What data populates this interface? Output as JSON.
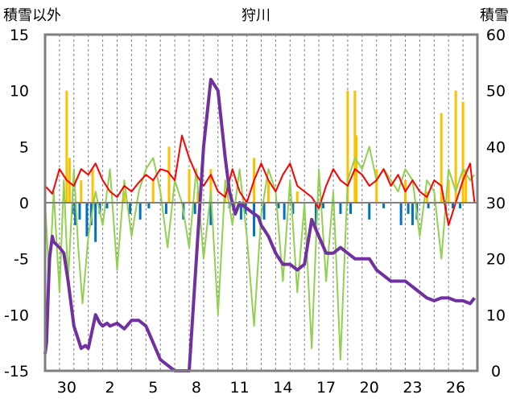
{
  "chart_data": {
    "type": "line",
    "title": "狩川",
    "left_axis_label": "積雪以外",
    "right_axis_label": "積雪",
    "left_ylim": [
      -15,
      15
    ],
    "left_yticks": [
      "15",
      "10",
      "5",
      "0",
      "-5",
      "-10",
      "-15"
    ],
    "right_ylim": [
      0,
      60
    ],
    "right_yticks": [
      "60",
      "50",
      "40",
      "30",
      "20",
      "10",
      "0"
    ],
    "x_range_days": [
      0,
      30
    ],
    "x_ticks": [
      {
        "label": "30",
        "day": 1.5
      },
      {
        "label": "2",
        "day": 4.5
      },
      {
        "label": "5",
        "day": 7.5
      },
      {
        "label": "8",
        "day": 10.5
      },
      {
        "label": "11",
        "day": 13.5
      },
      {
        "label": "14",
        "day": 16.5
      },
      {
        "label": "17",
        "day": 19.5
      },
      {
        "label": "20",
        "day": 22.5
      },
      {
        "label": "23",
        "day": 25.5
      },
      {
        "label": "26",
        "day": 28.5
      }
    ],
    "grid": "vertical dashed lines each day",
    "colors": {
      "temperature": "#ff0000",
      "wind": "#92d050",
      "precipitation": "#ffc000",
      "negative_bar": "#0070c0",
      "snow_depth": "#7030a0",
      "zero_line": "#808080",
      "frame": "#808080"
    },
    "series": [
      {
        "key": "snow",
        "axis": "right",
        "x": [
          0,
          0.1,
          0.3,
          0.5,
          0.6,
          1.0,
          1.3,
          1.6,
          2.0,
          2.5,
          2.8,
          3.0,
          3.5,
          3.8,
          4.0,
          4.3,
          4.5,
          5.0,
          5.5,
          6.0,
          6.5,
          7.0,
          7.5,
          8.0,
          9.0,
          9.5,
          10.0,
          11.0,
          11.5,
          12.0,
          12.5,
          12.8,
          13.0,
          13.2,
          13.5,
          14.0,
          14.5,
          14.8,
          15.0,
          15.5,
          16.0,
          16.5,
          17.0,
          17.5,
          18.0,
          18.5,
          19.0,
          19.5,
          20.0,
          20.5,
          21.0,
          21.5,
          22.0,
          22.5,
          23.0,
          23.5,
          24.0,
          25.0,
          25.5,
          26.0,
          26.5,
          27.0,
          27.5,
          28.0,
          28.5,
          29.0,
          29.5,
          29.8
        ],
        "y": [
          3,
          5,
          20,
          24,
          23,
          22,
          21,
          16,
          8,
          4,
          4.5,
          4,
          10,
          8.5,
          8,
          8.5,
          8,
          8.5,
          7.5,
          9,
          9,
          8,
          5,
          2,
          0,
          0,
          0,
          40,
          52,
          50,
          38,
          32,
          30,
          28,
          30,
          29,
          28,
          27.5,
          26,
          24,
          21,
          19,
          19,
          18,
          19,
          27,
          24,
          21,
          21,
          22,
          21,
          20,
          20,
          20,
          18,
          17,
          16,
          16,
          15,
          14,
          13,
          12.5,
          13,
          13,
          12.5,
          12.5,
          12,
          13
        ]
      },
      {
        "key": "temperature",
        "axis": "left",
        "x": [
          0,
          0.5,
          1.0,
          1.5,
          2.0,
          2.5,
          3.0,
          3.5,
          4.0,
          4.5,
          5.0,
          5.5,
          6.0,
          6.5,
          7.0,
          7.5,
          8.0,
          8.5,
          9.0,
          9.5,
          10.0,
          10.5,
          11.0,
          11.5,
          12.0,
          12.5,
          13.0,
          13.5,
          14.0,
          14.5,
          15.0,
          15.5,
          16.0,
          16.5,
          17.0,
          17.5,
          18.0,
          18.5,
          19.0,
          19.5,
          20.0,
          20.5,
          21.0,
          21.5,
          22.0,
          22.5,
          23.0,
          23.5,
          24.0,
          24.5,
          25.0,
          25.5,
          26.0,
          26.5,
          27.0,
          27.5,
          28.0,
          28.5,
          29.0,
          29.5,
          29.8
        ],
        "y": [
          1.5,
          0.8,
          3.0,
          2.0,
          1.5,
          3.0,
          2.5,
          3.5,
          2.0,
          1.0,
          0.5,
          1.5,
          1.0,
          1.8,
          2.5,
          2.0,
          3.0,
          2.8,
          2.0,
          6.0,
          4.0,
          2.5,
          1.5,
          2.5,
          1.0,
          0.5,
          3.0,
          1.0,
          0.0,
          2.0,
          3.5,
          2.0,
          1.0,
          2.5,
          3.5,
          1.5,
          1.0,
          0.5,
          -0.5,
          1.5,
          3.0,
          2.0,
          1.5,
          3.0,
          2.5,
          1.5,
          2.0,
          3.0,
          1.5,
          2.5,
          1.0,
          2.0,
          1.0,
          0.5,
          2.0,
          1.5,
          -2.0,
          0.0,
          2.0,
          3.5,
          0.0
        ]
      },
      {
        "key": "wind",
        "axis": "left",
        "x": [
          0,
          0.3,
          0.6,
          1.0,
          1.3,
          1.6,
          2.0,
          2.3,
          2.6,
          3.0,
          3.5,
          4.0,
          4.5,
          5.0,
          5.5,
          6.0,
          6.5,
          7.0,
          7.5,
          8.0,
          8.5,
          9.0,
          9.5,
          10.0,
          10.5,
          11.0,
          11.5,
          12.0,
          12.5,
          13.0,
          13.5,
          14.0,
          14.5,
          15.0,
          15.5,
          16.0,
          16.5,
          17.0,
          17.5,
          18.0,
          18.5,
          19.0,
          19.5,
          20.0,
          20.5,
          21.0,
          21.5,
          22.0,
          22.5,
          23.0,
          23.5,
          24.0,
          24.5,
          25.0,
          25.5,
          26.0,
          26.5,
          27.0,
          27.5,
          28.0,
          28.5,
          29.0,
          29.5,
          29.8
        ],
        "y": [
          0,
          -7,
          1,
          -8,
          2,
          -7,
          3,
          -4,
          -9,
          -3,
          1,
          -2,
          3,
          -6,
          2,
          -3,
          1,
          3,
          4,
          1,
          -4,
          2,
          0,
          -4,
          3,
          -5,
          1,
          -10,
          2,
          -2,
          3,
          -3,
          -11,
          -1,
          3,
          1,
          -7,
          2,
          -8,
          0,
          -13,
          3,
          -7,
          1,
          -14,
          2,
          4,
          3,
          5,
          2,
          3,
          2,
          1,
          3,
          2,
          -3,
          2,
          1,
          -5,
          3,
          1,
          3,
          2,
          2.5
        ]
      },
      {
        "key": "precipitation",
        "axis": "left",
        "type": "bar",
        "x": [
          1.5,
          1.7,
          2.5,
          3.3,
          5.5,
          7.5,
          8.6,
          10.0,
          10.6,
          11.5,
          12.5,
          14.5,
          15.5,
          17.5,
          21.0,
          21.5,
          21.6,
          23.0,
          25.0,
          26.5,
          27.5,
          28.0,
          28.5,
          29.0,
          29.2
        ],
        "y": [
          10,
          4,
          2,
          3,
          1,
          2,
          5,
          3,
          1,
          3,
          1,
          4,
          2,
          1,
          10,
          10,
          6,
          3,
          2,
          1,
          8,
          2,
          10,
          9,
          3
        ]
      },
      {
        "key": "negative_bar",
        "axis": "left",
        "type": "bar",
        "x": [
          1.9,
          2.1,
          2.4,
          2.9,
          3.2,
          3.5,
          3.8,
          4.3,
          5.9,
          6.6,
          7.2,
          8.4,
          9.6,
          10.4,
          11.5,
          12.8,
          13.6,
          13.9,
          14.5,
          15.2,
          16.2,
          16.6,
          17.2,
          18.8,
          19.3,
          20.5,
          21.2,
          22.5,
          23.5,
          24.7,
          25.2,
          25.5,
          25.8,
          26.6,
          27.8,
          28.3,
          28.8
        ],
        "y": [
          -1,
          -2,
          -1.5,
          -3,
          -2,
          -3.5,
          -1,
          -0.5,
          -1,
          -1.5,
          -0.5,
          -1,
          -1.5,
          -1,
          -2,
          -0.5,
          -1.5,
          -1,
          -3,
          -1.5,
          -0.5,
          -1.5,
          -1,
          -2,
          -0.5,
          -1,
          -1,
          -1.5,
          -0.5,
          -2,
          -1,
          -2,
          -1.5,
          -0.5,
          -1,
          -0.5,
          -0.5
        ]
      }
    ]
  }
}
